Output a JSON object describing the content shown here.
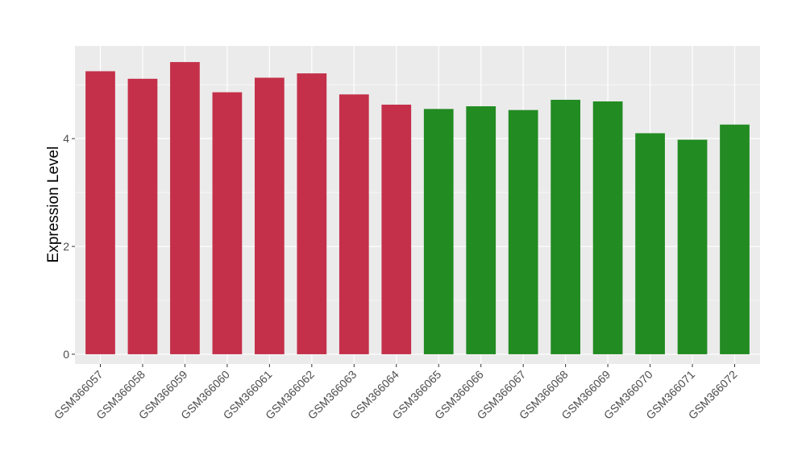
{
  "chart_data": {
    "type": "bar",
    "title": "",
    "xlabel": "",
    "ylabel": "Expression Level",
    "ylim": [
      -0.18,
      5.72
    ],
    "yticks": [
      0,
      2,
      4
    ],
    "grid": true,
    "legend": "none",
    "categories": [
      "GSM366057",
      "GSM366058",
      "GSM366059",
      "GSM366060",
      "GSM366061",
      "GSM366062",
      "GSM366063",
      "GSM366064",
      "GSM366065",
      "GSM366066",
      "GSM366067",
      "GSM366068",
      "GSM366069",
      "GSM366070",
      "GSM366071",
      "GSM366072"
    ],
    "values": [
      5.25,
      5.11,
      5.42,
      4.86,
      5.13,
      5.21,
      4.82,
      4.63,
      4.55,
      4.6,
      4.53,
      4.72,
      4.69,
      4.1,
      3.98,
      4.26
    ],
    "colors": [
      "#c4304a",
      "#c4304a",
      "#c4304a",
      "#c4304a",
      "#c4304a",
      "#c4304a",
      "#c4304a",
      "#c4304a",
      "#228b22",
      "#228b22",
      "#228b22",
      "#228b22",
      "#228b22",
      "#228b22",
      "#228b22",
      "#228b22"
    ],
    "panel_background": "#ebebeb",
    "grid_color": "#ffffff"
  }
}
